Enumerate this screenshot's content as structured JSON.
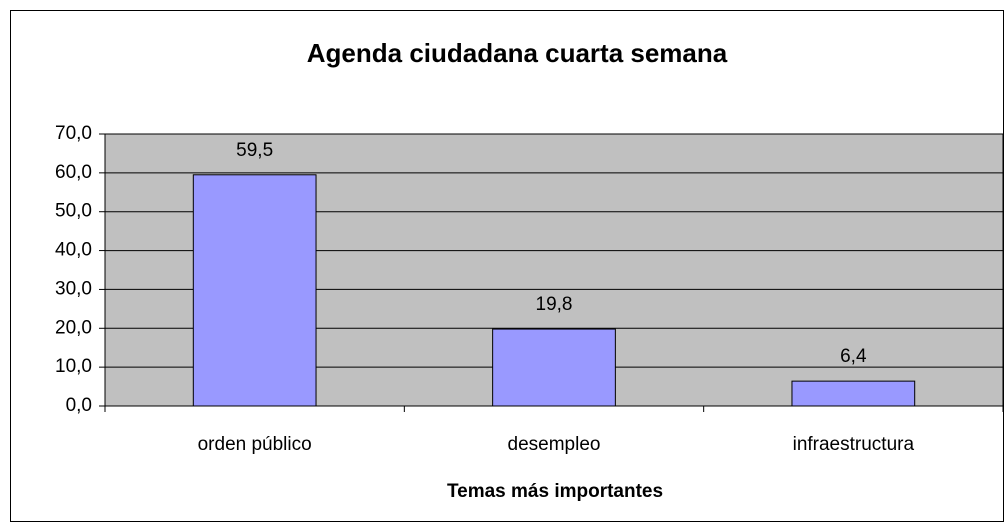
{
  "chart_data": {
    "type": "bar",
    "title": "Agenda ciudadana cuarta semana",
    "x_label": "Temas más importantes",
    "categories": [
      "orden público",
      "desempleo",
      "infraestructura"
    ],
    "values": [
      59.5,
      19.8,
      6.4
    ],
    "value_labels": [
      "59,5",
      "19,8",
      "6,4"
    ],
    "color": "#9999ff",
    "plot_background": "#c0c0c0",
    "ylim": [
      0,
      70
    ],
    "yticks": [
      {
        "value": 0,
        "label": "0,0"
      },
      {
        "value": 10,
        "label": "10,0"
      },
      {
        "value": 20,
        "label": "20,0"
      },
      {
        "value": 30,
        "label": "30,0"
      },
      {
        "value": 40,
        "label": "40,0"
      },
      {
        "value": 50,
        "label": "50,0"
      },
      {
        "value": 60,
        "label": "60,0"
      },
      {
        "value": 70,
        "label": "70,0"
      }
    ],
    "grid": true
  }
}
